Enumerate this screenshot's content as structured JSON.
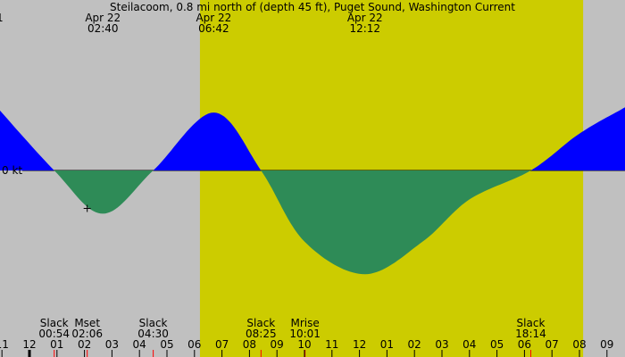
{
  "chart_data": {
    "type": "area",
    "title": "Steilacoom, 0.8 mi north of (depth 45 ft), Puget Sound, Washington Current",
    "ylabel": "0 kt",
    "truncated_left_label": "1",
    "x_unit": "hour of day (Apr 22)",
    "xlim": [
      -1.07,
      21.66
    ],
    "ylim_kt_approx": [
      -3.0,
      3.2
    ],
    "daylight": {
      "start": "06:12",
      "end": "20:08",
      "color": "#cccc00"
    },
    "night_color": "#c0c0c0",
    "flood_color": "#0000ff",
    "ebb_color": "#2e8b57",
    "curve_points": [
      {
        "t": -1.6,
        "kt": 1.45
      },
      {
        "t": 0.9,
        "kt": 0
      },
      {
        "t": 2.67,
        "kt": -0.82
      },
      {
        "t": 4.5,
        "kt": 0
      },
      {
        "t": 6.7,
        "kt": 1.1
      },
      {
        "t": 8.42,
        "kt": 0
      },
      {
        "t": 10.0,
        "kt": -1.35
      },
      {
        "t": 12.2,
        "kt": -1.97
      },
      {
        "t": 14.3,
        "kt": -1.35
      },
      {
        "t": 16.0,
        "kt": -0.55
      },
      {
        "t": 18.23,
        "kt": 0
      },
      {
        "t": 20.0,
        "kt": 0.7
      },
      {
        "t": 21.66,
        "kt": 1.2
      },
      {
        "t": 22.5,
        "kt": 1.45
      }
    ],
    "top_labels": [
      {
        "t": 2.67,
        "date": "Apr 22",
        "time": "02:40"
      },
      {
        "t": 6.7,
        "date": "Apr 22",
        "time": "06:42"
      },
      {
        "t": 12.2,
        "date": "Apr 22",
        "time": "12:12"
      }
    ],
    "events": [
      {
        "t": 0.9,
        "label": "Slack",
        "time": "00:54"
      },
      {
        "t": 2.1,
        "label": "Mset",
        "time": "02:06"
      },
      {
        "t": 4.5,
        "label": "Slack",
        "time": "04:30"
      },
      {
        "t": 8.42,
        "label": "Slack",
        "time": "08:25"
      },
      {
        "t": 10.02,
        "label": "Mrise",
        "time": "10:01"
      },
      {
        "t": 18.23,
        "label": "Slack",
        "time": "18:14"
      }
    ],
    "moonset_marker": {
      "t": 2.1,
      "kt": -0.72
    },
    "x_ticks": [
      {
        "t": -1,
        "label": "11"
      },
      {
        "t": 0,
        "label": "12"
      },
      {
        "t": 1,
        "label": "01"
      },
      {
        "t": 2,
        "label": "02"
      },
      {
        "t": 3,
        "label": "03"
      },
      {
        "t": 4,
        "label": "04"
      },
      {
        "t": 5,
        "label": "05"
      },
      {
        "t": 6,
        "label": "06"
      },
      {
        "t": 7,
        "label": "07"
      },
      {
        "t": 8,
        "label": "08"
      },
      {
        "t": 9,
        "label": "09"
      },
      {
        "t": 10,
        "label": "10"
      },
      {
        "t": 11,
        "label": "11"
      },
      {
        "t": 12,
        "label": "12"
      },
      {
        "t": 13,
        "label": "01"
      },
      {
        "t": 14,
        "label": "02"
      },
      {
        "t": 15,
        "label": "03"
      },
      {
        "t": 16,
        "label": "04"
      },
      {
        "t": 17,
        "label": "05"
      },
      {
        "t": 18,
        "label": "06"
      },
      {
        "t": 19,
        "label": "07"
      },
      {
        "t": 20,
        "label": "08"
      },
      {
        "t": 21,
        "label": "09"
      }
    ]
  }
}
